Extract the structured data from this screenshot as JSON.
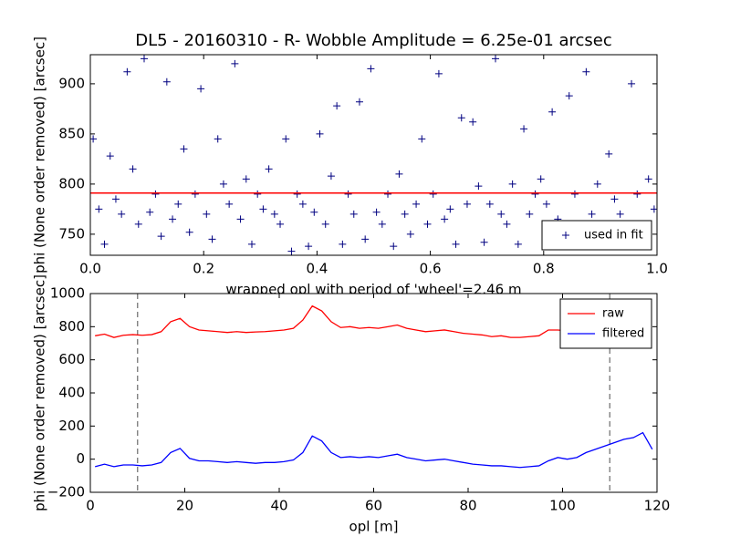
{
  "chart_data": [
    {
      "type": "scatter",
      "title": "DL5 - 20160310 - R- Wobble Amplitude = 6.25e-01 arcsec",
      "x_label": "wrapped opl with period of 'wheel'=2.46 m",
      "y_label": "phi (None order removed) [arcsec]",
      "xlim": [
        0,
        1
      ],
      "ylim": [
        729,
        929
      ],
      "xticks": [
        {
          "value": 0,
          "label": "0.0"
        },
        0.2,
        0.4,
        0.6,
        0.8,
        {
          "value": 1,
          "label": "1.0"
        }
      ],
      "yticks": [
        750,
        800,
        850,
        900
      ],
      "legend": "lower right",
      "fit_value": 791,
      "fit_color": "#ff0000",
      "series": [
        {
          "name": "used in fit",
          "color": "#000080",
          "x": [
            0.005,
            0.015,
            0.025,
            0.035,
            0.045,
            0.055,
            0.065,
            0.075,
            0.085,
            0.095,
            0.105,
            0.115,
            0.125,
            0.135,
            0.145,
            0.155,
            0.165,
            0.175,
            0.185,
            0.195,
            0.205,
            0.215,
            0.225,
            0.235,
            0.245,
            0.255,
            0.265,
            0.275,
            0.285,
            0.295,
            0.305,
            0.315,
            0.325,
            0.335,
            0.345,
            0.355,
            0.365,
            0.375,
            0.385,
            0.395,
            0.405,
            0.415,
            0.425,
            0.435,
            0.445,
            0.455,
            0.465,
            0.475,
            0.485,
            0.495,
            0.505,
            0.515,
            0.525,
            0.535,
            0.545,
            0.555,
            0.565,
            0.575,
            0.585,
            0.595,
            0.605,
            0.615,
            0.625,
            0.635,
            0.645,
            0.655,
            0.665,
            0.675,
            0.685,
            0.695,
            0.705,
            0.715,
            0.725,
            0.735,
            0.745,
            0.755,
            0.765,
            0.775,
            0.785,
            0.795,
            0.805,
            0.815,
            0.825,
            0.835,
            0.845,
            0.855,
            0.865,
            0.875,
            0.885,
            0.895,
            0.905,
            0.915,
            0.925,
            0.935,
            0.945,
            0.955,
            0.965,
            0.975,
            0.985,
            0.995
          ],
          "values": [
            845,
            775,
            740,
            828,
            785,
            770,
            912,
            815,
            760,
            925,
            772,
            790,
            748,
            902,
            765,
            780,
            835,
            752,
            790,
            895,
            770,
            745,
            845,
            800,
            780,
            920,
            765,
            805,
            740,
            790,
            775,
            815,
            770,
            760,
            845,
            733,
            790,
            780,
            738,
            772,
            850,
            760,
            808,
            878,
            740,
            790,
            770,
            882,
            745,
            915,
            772,
            760,
            790,
            738,
            810,
            770,
            750,
            780,
            845,
            760,
            790,
            910,
            765,
            775,
            740,
            866,
            780,
            862,
            798,
            742,
            780,
            925,
            770,
            760,
            800,
            740,
            855,
            770,
            790,
            805,
            780,
            872,
            765,
            750,
            888,
            790,
            740,
            912,
            770,
            800,
            760,
            830,
            785,
            770,
            740,
            900,
            790,
            760,
            805,
            775
          ]
        }
      ]
    },
    {
      "type": "line",
      "x_label": "opl [m]",
      "y_label": "phi (None order removed) [arcsec]",
      "xlim": [
        0,
        120
      ],
      "ylim": [
        -200,
        1000
      ],
      "xticks": [
        0,
        20,
        40,
        60,
        80,
        100,
        120
      ],
      "yticks": [
        {
          "value": -200,
          "label": "−200"
        },
        0,
        200,
        400,
        600,
        800,
        1000
      ],
      "legend": "upper right",
      "vlines": [
        10,
        110
      ],
      "x": [
        1,
        3,
        5,
        7,
        9,
        11,
        13,
        15,
        17,
        19,
        21,
        23,
        25,
        27,
        29,
        31,
        33,
        35,
        37,
        39,
        41,
        43,
        45,
        47,
        49,
        51,
        53,
        55,
        57,
        59,
        61,
        63,
        65,
        67,
        69,
        71,
        73,
        75,
        77,
        79,
        81,
        83,
        85,
        87,
        89,
        91,
        93,
        95,
        97,
        99,
        101,
        103,
        105,
        107,
        109,
        111,
        113,
        115,
        117,
        119
      ],
      "series": [
        {
          "name": "raw",
          "color": "#ff0000",
          "values": [
            745,
            755,
            735,
            748,
            752,
            748,
            752,
            770,
            830,
            850,
            800,
            780,
            775,
            770,
            765,
            770,
            765,
            768,
            770,
            775,
            780,
            790,
            840,
            925,
            895,
            830,
            795,
            800,
            790,
            795,
            790,
            800,
            810,
            790,
            780,
            770,
            775,
            780,
            770,
            760,
            755,
            750,
            740,
            745,
            735,
            735,
            740,
            745,
            780,
            780,
            775,
            770,
            765,
            755,
            null,
            null,
            null,
            null,
            null,
            null
          ]
        },
        {
          "name": "filtered",
          "color": "#0000ff",
          "values": [
            -45,
            -30,
            -45,
            -35,
            -35,
            -40,
            -35,
            -20,
            40,
            65,
            5,
            -10,
            -10,
            -15,
            -20,
            -15,
            -20,
            -25,
            -20,
            -20,
            -15,
            -5,
            40,
            140,
            110,
            40,
            10,
            15,
            10,
            15,
            10,
            20,
            30,
            10,
            0,
            -10,
            -5,
            0,
            -10,
            -20,
            -30,
            -35,
            -40,
            -40,
            -45,
            -50,
            -45,
            -40,
            -10,
            10,
            0,
            10,
            40,
            60,
            80,
            100,
            120,
            130,
            160,
            60
          ]
        }
      ]
    }
  ]
}
